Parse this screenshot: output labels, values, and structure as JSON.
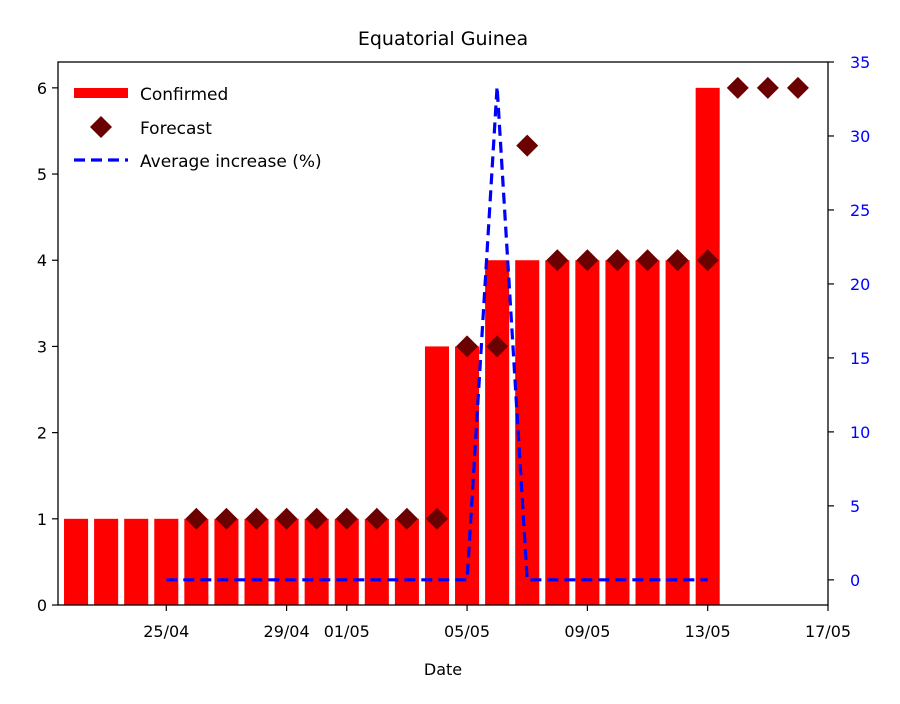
{
  "chart_data": {
    "type": "bar",
    "title": "Equatorial Guinea",
    "xlabel": "Date",
    "ylabel": "",
    "ylabel_right": "",
    "x_tick_labels": [
      "25/04",
      "29/04",
      "01/05",
      "05/05",
      "09/05",
      "13/05",
      "17/05"
    ],
    "y_ticks_left": [
      0,
      1,
      2,
      3,
      4,
      5,
      6
    ],
    "y_ticks_right": [
      0,
      5,
      10,
      15,
      20,
      25,
      30,
      35
    ],
    "ylim_left": [
      0,
      6.3
    ],
    "ylim_right": [
      -1.7,
      35
    ],
    "grid": false,
    "legend_position": "top-left",
    "colors": {
      "confirmed": "#ff0000",
      "forecast": "#6b0000",
      "average_increase": "#0000ff",
      "right_axis": "#0000ff"
    },
    "series": [
      {
        "name": "Confirmed",
        "kind": "bar",
        "axis": "left",
        "x": [
          "22/04",
          "23/04",
          "24/04",
          "25/04",
          "26/04",
          "27/04",
          "28/04",
          "29/04",
          "30/04",
          "01/05",
          "02/05",
          "03/05",
          "04/05",
          "05/05",
          "06/05",
          "07/05",
          "08/05",
          "09/05",
          "10/05",
          "11/05",
          "12/05",
          "13/05"
        ],
        "values": [
          1,
          1,
          1,
          1,
          1,
          1,
          1,
          1,
          1,
          1,
          1,
          1,
          3,
          3,
          4,
          4,
          4,
          4,
          4,
          4,
          4,
          6
        ]
      },
      {
        "name": "Forecast",
        "kind": "scatter",
        "axis": "left",
        "x": [
          "26/04",
          "27/04",
          "28/04",
          "29/04",
          "30/04",
          "01/05",
          "02/05",
          "03/05",
          "04/05",
          "05/05",
          "06/05",
          "07/05",
          "08/05",
          "09/05",
          "10/05",
          "11/05",
          "12/05",
          "13/05",
          "14/05",
          "15/05",
          "16/05"
        ],
        "values": [
          1,
          1,
          1,
          1,
          1,
          1,
          1,
          1,
          1,
          3,
          3,
          5.33,
          4,
          4,
          4,
          4,
          4,
          4,
          6,
          6,
          6
        ]
      },
      {
        "name": "Average increase (%)",
        "kind": "line",
        "axis": "right",
        "x": [
          "25/04",
          "26/04",
          "27/04",
          "28/04",
          "29/04",
          "30/04",
          "01/05",
          "02/05",
          "03/05",
          "04/05",
          "05/05",
          "06/05",
          "07/05",
          "08/05",
          "09/05",
          "10/05",
          "11/05",
          "12/05",
          "13/05"
        ],
        "values": [
          0,
          0,
          0,
          0,
          0,
          0,
          0,
          0,
          0,
          0,
          0,
          33.33,
          0,
          0,
          0,
          0,
          0,
          0,
          0
        ]
      }
    ]
  }
}
